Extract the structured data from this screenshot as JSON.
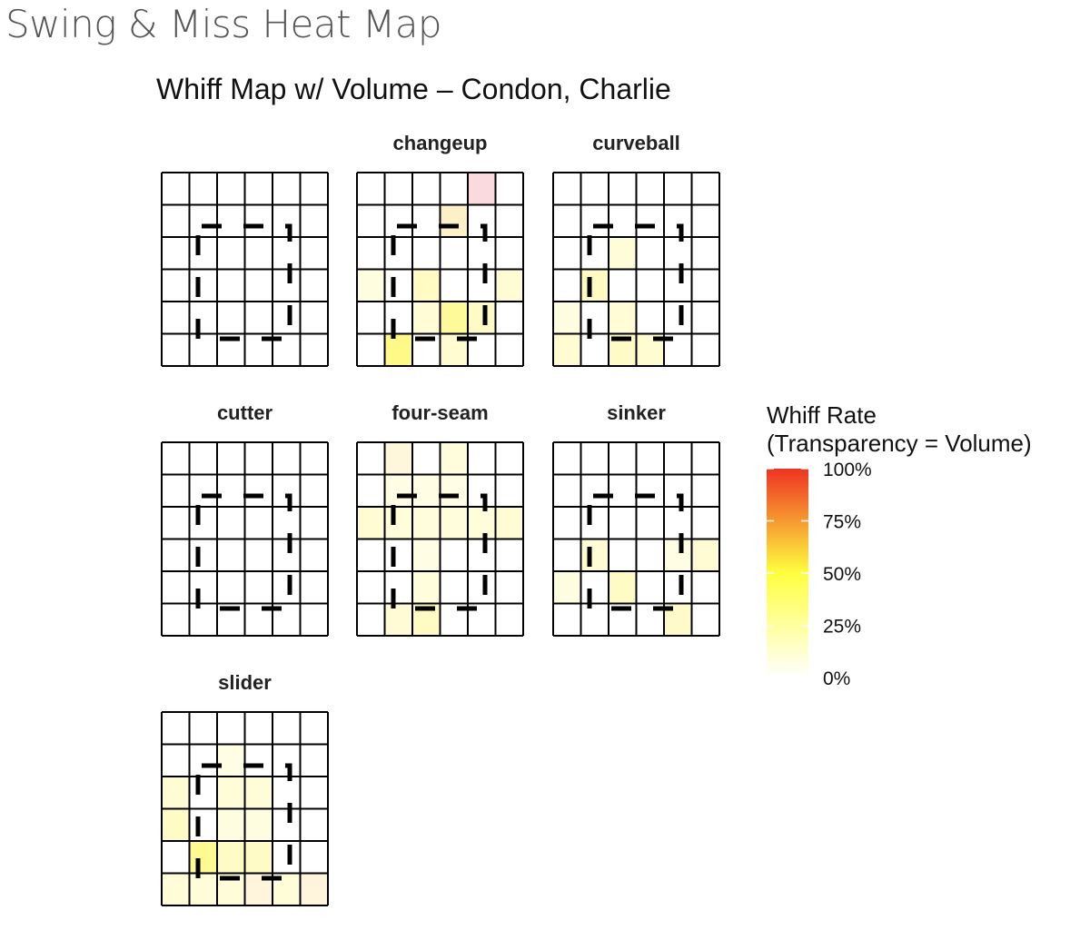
{
  "page": {
    "title": "Swing & Miss Heat Map"
  },
  "chart_data": {
    "type": "heatmap",
    "title": "Whiff Map w/ Volume – Condon, Charlie",
    "grid": {
      "rows": 6,
      "cols": 6
    },
    "strike_zone": {
      "style": "dashed",
      "color": "#000000"
    },
    "legend": {
      "title_lines": [
        "Whiff Rate",
        "(Transparency = Volume)"
      ],
      "ticks": [
        "100%",
        "75%",
        "50%",
        "25%",
        "0%"
      ],
      "tick_values": [
        1.0,
        0.75,
        0.5,
        0.25,
        0.0
      ],
      "placement": "right"
    },
    "color_scale": {
      "low": "#ffffff",
      "mid": "#ffff40",
      "high": "#ee3322"
    },
    "facets": [
      {
        "name": "",
        "cells": []
      },
      {
        "name": "changeup",
        "cells": [
          {
            "row": 0,
            "col": 4,
            "color": "#fadadd"
          },
          {
            "row": 1,
            "col": 3,
            "color": "#fdefc6"
          },
          {
            "row": 3,
            "col": 0,
            "color": "#fffde0"
          },
          {
            "row": 3,
            "col": 2,
            "color": "#fffbc2"
          },
          {
            "row": 3,
            "col": 5,
            "color": "#fffcd4"
          },
          {
            "row": 4,
            "col": 2,
            "color": "#fffcd6"
          },
          {
            "row": 4,
            "col": 3,
            "color": "#fffa99"
          },
          {
            "row": 4,
            "col": 4,
            "color": "#fffbc4"
          },
          {
            "row": 5,
            "col": 1,
            "color": "#fff988"
          },
          {
            "row": 5,
            "col": 3,
            "color": "#fffcd2"
          }
        ]
      },
      {
        "name": "curveball",
        "cells": [
          {
            "row": 2,
            "col": 2,
            "color": "#fffdd8"
          },
          {
            "row": 3,
            "col": 1,
            "color": "#fffbc2"
          },
          {
            "row": 4,
            "col": 0,
            "color": "#fffde0"
          },
          {
            "row": 4,
            "col": 2,
            "color": "#fffcd6"
          },
          {
            "row": 5,
            "col": 0,
            "color": "#fffcd2"
          },
          {
            "row": 5,
            "col": 2,
            "color": "#fffbc6"
          },
          {
            "row": 5,
            "col": 3,
            "color": "#fffcd2"
          }
        ]
      },
      {
        "name": "cutter",
        "cells": []
      },
      {
        "name": "four-seam",
        "cells": [
          {
            "row": 0,
            "col": 1,
            "color": "#fff7dc"
          },
          {
            "row": 0,
            "col": 3,
            "color": "#fffddc"
          },
          {
            "row": 1,
            "col": 1,
            "color": "#fffde4"
          },
          {
            "row": 1,
            "col": 2,
            "color": "#fffde4"
          },
          {
            "row": 1,
            "col": 3,
            "color": "#fffde4"
          },
          {
            "row": 2,
            "col": 0,
            "color": "#fffcd4"
          },
          {
            "row": 2,
            "col": 1,
            "color": "#fffdda"
          },
          {
            "row": 2,
            "col": 2,
            "color": "#fffdda"
          },
          {
            "row": 2,
            "col": 3,
            "color": "#fffdda"
          },
          {
            "row": 2,
            "col": 4,
            "color": "#fffdda"
          },
          {
            "row": 2,
            "col": 5,
            "color": "#fffcd4"
          },
          {
            "row": 3,
            "col": 2,
            "color": "#fffde4"
          },
          {
            "row": 4,
            "col": 2,
            "color": "#fffddc"
          },
          {
            "row": 5,
            "col": 1,
            "color": "#fffbd4"
          },
          {
            "row": 5,
            "col": 2,
            "color": "#fffbc2"
          }
        ]
      },
      {
        "name": "sinker",
        "cells": [
          {
            "row": 3,
            "col": 1,
            "color": "#fffcd4"
          },
          {
            "row": 3,
            "col": 4,
            "color": "#fffde4"
          },
          {
            "row": 3,
            "col": 5,
            "color": "#fffcd4"
          },
          {
            "row": 4,
            "col": 0,
            "color": "#fffde0"
          },
          {
            "row": 4,
            "col": 2,
            "color": "#fffbc4"
          },
          {
            "row": 5,
            "col": 4,
            "color": "#fffbc8"
          }
        ]
      },
      {
        "name": "slider",
        "cells": [
          {
            "row": 1,
            "col": 2,
            "color": "#fffde4"
          },
          {
            "row": 2,
            "col": 0,
            "color": "#fffcd4"
          },
          {
            "row": 2,
            "col": 2,
            "color": "#fffcd8"
          },
          {
            "row": 2,
            "col": 3,
            "color": "#fffcd8"
          },
          {
            "row": 3,
            "col": 0,
            "color": "#fffbc4"
          },
          {
            "row": 3,
            "col": 2,
            "color": "#fffde0"
          },
          {
            "row": 3,
            "col": 3,
            "color": "#fffde0"
          },
          {
            "row": 4,
            "col": 1,
            "color": "#fffa90"
          },
          {
            "row": 4,
            "col": 2,
            "color": "#fffbc4"
          },
          {
            "row": 4,
            "col": 3,
            "color": "#fffbc4"
          },
          {
            "row": 5,
            "col": 0,
            "color": "#fffcd8"
          },
          {
            "row": 5,
            "col": 1,
            "color": "#fffcd8"
          },
          {
            "row": 5,
            "col": 2,
            "color": "#fffcd8"
          },
          {
            "row": 5,
            "col": 3,
            "color": "#fff5dc"
          },
          {
            "row": 5,
            "col": 4,
            "color": "#fffcd8"
          },
          {
            "row": 5,
            "col": 5,
            "color": "#fff5dc"
          }
        ]
      }
    ]
  }
}
